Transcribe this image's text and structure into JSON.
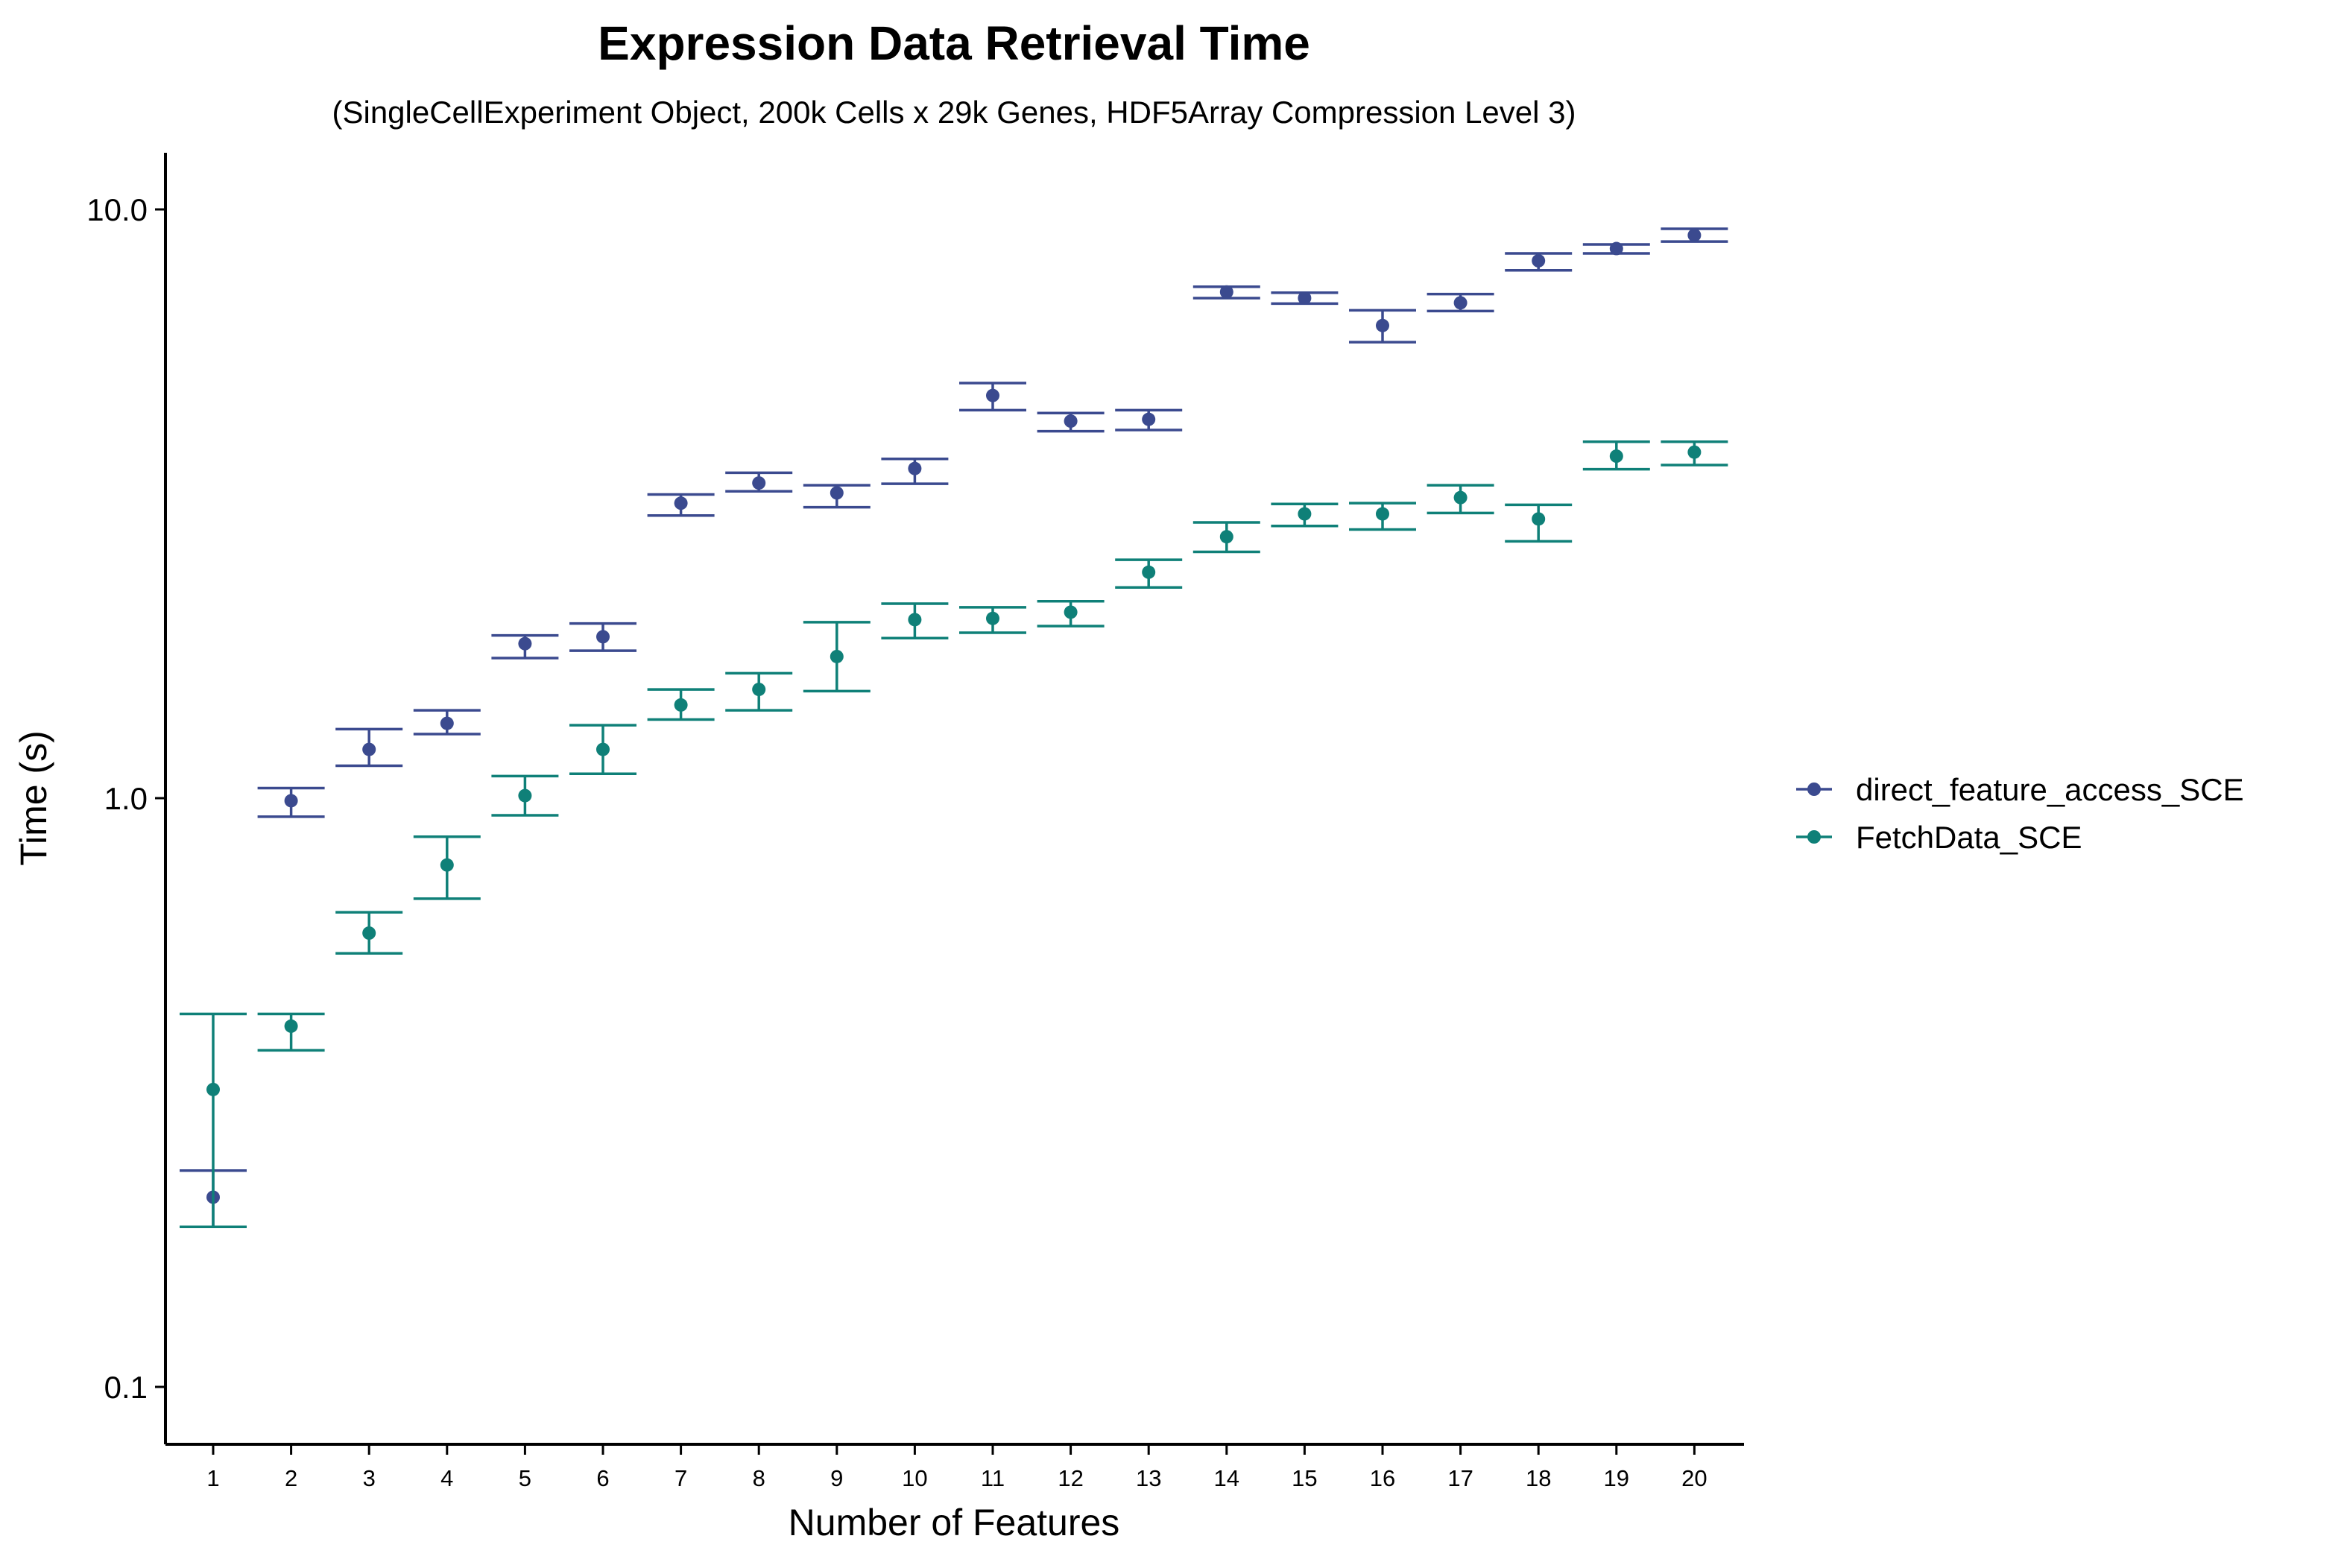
{
  "chart_data": {
    "type": "scatter",
    "title": "Expression Data Retrieval Time",
    "subtitle": "(SingleCellExperiment Object, 200k Cells x 29k Genes, HDF5Array Compression Level 3)",
    "xlabel": "Number of Features",
    "ylabel": "Time (s)",
    "yscale": "log",
    "ylim": [
      0.08,
      12.5
    ],
    "yticks": [
      0.1,
      1.0,
      10.0
    ],
    "ytick_labels": [
      "0.1",
      "1.0",
      "10.0"
    ],
    "x": [
      1,
      2,
      3,
      4,
      5,
      6,
      7,
      8,
      9,
      10,
      11,
      12,
      13,
      14,
      15,
      16,
      17,
      18,
      19,
      20
    ],
    "grid": false,
    "legend_position": "right",
    "error_bars": true,
    "series": [
      {
        "name": "direct_feature_access_SCE",
        "color": "#3b4a8f",
        "values": [
          0.21,
          0.99,
          1.21,
          1.34,
          1.83,
          1.88,
          3.17,
          3.43,
          3.3,
          3.63,
          4.83,
          4.37,
          4.4,
          7.24,
          7.07,
          6.35,
          6.94,
          8.18,
          8.58,
          9.04
        ],
        "lower": [
          0.187,
          0.93,
          1.135,
          1.285,
          1.73,
          1.78,
          3.02,
          3.32,
          3.12,
          3.42,
          4.56,
          4.2,
          4.22,
          7.07,
          6.92,
          5.95,
          6.72,
          7.88,
          8.42,
          8.82
        ],
        "upper": [
          0.233,
          1.04,
          1.31,
          1.41,
          1.89,
          1.98,
          3.28,
          3.57,
          3.4,
          3.77,
          5.07,
          4.51,
          4.56,
          7.39,
          7.22,
          6.74,
          7.18,
          8.42,
          8.72,
          9.27
        ]
      },
      {
        "name": "FetchData_SCE",
        "color": "#0f8078",
        "values": [
          0.32,
          0.41,
          0.59,
          0.77,
          1.01,
          1.21,
          1.44,
          1.53,
          1.74,
          2.01,
          2.02,
          2.07,
          2.42,
          2.78,
          3.04,
          3.04,
          3.24,
          2.98,
          3.81,
          3.87
        ],
        "lower": [
          0.187,
          0.373,
          0.545,
          0.675,
          0.935,
          1.1,
          1.36,
          1.41,
          1.52,
          1.87,
          1.91,
          1.96,
          2.28,
          2.62,
          2.9,
          2.86,
          3.05,
          2.73,
          3.62,
          3.68
        ],
        "upper": [
          0.43,
          0.43,
          0.64,
          0.86,
          1.09,
          1.33,
          1.53,
          1.63,
          1.99,
          2.14,
          2.11,
          2.16,
          2.54,
          2.94,
          3.16,
          3.17,
          3.4,
          3.15,
          4.03,
          4.03
        ]
      }
    ]
  }
}
